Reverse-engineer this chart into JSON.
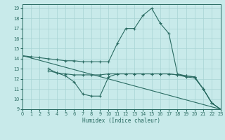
{
  "xlabel": "Humidex (Indice chaleur)",
  "bg_color": "#c8eaea",
  "line_color": "#2a6b62",
  "grid_color": "#a8d4d4",
  "xlim": [
    0,
    23
  ],
  "ylim": [
    9,
    19.4
  ],
  "xticks": [
    0,
    1,
    2,
    3,
    4,
    5,
    6,
    7,
    8,
    9,
    10,
    11,
    12,
    13,
    14,
    15,
    16,
    17,
    18,
    19,
    20,
    21,
    22,
    23
  ],
  "yticks": [
    9,
    10,
    11,
    12,
    13,
    14,
    15,
    16,
    17,
    18,
    19
  ],
  "series": [
    {
      "x": [
        0,
        1,
        2,
        3,
        4,
        5,
        6,
        7,
        8,
        9,
        10,
        11,
        12,
        13,
        14,
        15,
        16,
        17,
        18,
        19,
        20,
        21,
        22,
        23
      ],
      "y": [
        14.3,
        14.2,
        14.1,
        14.0,
        13.9,
        13.8,
        13.8,
        13.7,
        13.7,
        13.7,
        13.7,
        15.5,
        17.0,
        17.0,
        18.3,
        19.0,
        17.5,
        16.5,
        12.5,
        12.3,
        12.2,
        11.0,
        9.6,
        9.0
      ],
      "markers": true
    },
    {
      "x": [
        3,
        4,
        5,
        6,
        7,
        8,
        9,
        10,
        11,
        12,
        13,
        14,
        15,
        16,
        17,
        18,
        19,
        20,
        21,
        22,
        23
      ],
      "y": [
        13.0,
        12.6,
        12.3,
        11.7,
        10.5,
        10.3,
        10.3,
        12.2,
        12.5,
        12.5,
        12.5,
        12.5,
        12.5,
        12.5,
        12.5,
        12.4,
        12.2,
        12.1,
        11.0,
        9.6,
        9.0
      ],
      "markers": true
    },
    {
      "x": [
        3,
        4,
        5,
        6,
        7,
        8,
        9,
        10,
        11,
        12,
        13,
        14,
        15,
        16,
        17,
        18,
        19,
        20,
        21,
        22,
        23
      ],
      "y": [
        12.8,
        12.6,
        12.5,
        12.4,
        12.4,
        12.4,
        12.4,
        12.5,
        12.5,
        12.5,
        12.5,
        12.5,
        12.5,
        12.5,
        12.5,
        12.4,
        12.3,
        12.2,
        11.0,
        9.6,
        9.0
      ],
      "markers": true
    },
    {
      "x": [
        0,
        23
      ],
      "y": [
        14.3,
        9.0
      ],
      "markers": false
    }
  ]
}
